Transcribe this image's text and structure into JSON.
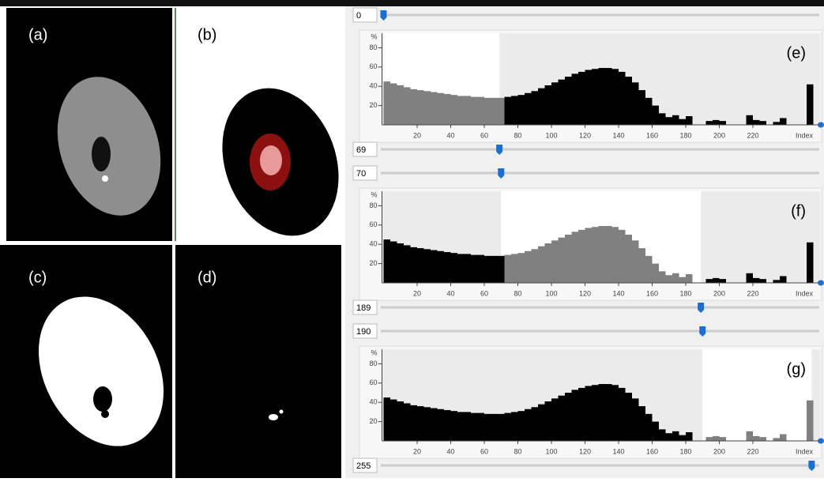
{
  "figure_panels": [
    {
      "label": "(a)"
    },
    {
      "label": "(b)"
    },
    {
      "label": "(c)"
    },
    {
      "label": "(d)"
    }
  ],
  "histogram": {
    "bins": [
      0,
      4,
      8,
      12,
      16,
      20,
      24,
      28,
      32,
      36,
      40,
      44,
      48,
      52,
      56,
      60,
      64,
      68,
      72,
      76,
      80,
      84,
      88,
      92,
      96,
      100,
      104,
      108,
      112,
      116,
      120,
      124,
      128,
      132,
      136,
      140,
      144,
      148,
      152,
      156,
      160,
      164,
      168,
      172,
      176,
      180,
      184,
      188,
      192,
      196,
      200,
      204,
      208,
      212,
      216,
      220,
      224,
      228,
      232,
      236,
      240,
      244,
      248,
      252,
      256
    ],
    "counts": [
      45,
      43,
      41,
      39,
      37,
      36,
      35,
      34,
      33,
      32,
      31,
      30,
      30,
      29,
      29,
      28,
      28,
      28,
      29,
      30,
      31,
      33,
      35,
      38,
      41,
      44,
      47,
      50,
      53,
      55,
      57,
      58,
      59,
      59,
      58,
      55,
      50,
      44,
      36,
      28,
      20,
      12,
      8,
      10,
      6,
      9,
      0,
      0,
      4,
      5,
      4,
      0,
      0,
      0,
      10,
      5,
      4,
      0,
      3,
      7,
      0,
      0,
      0,
      42
    ],
    "xlim": [
      0,
      260
    ],
    "xticks": [
      20,
      40,
      60,
      80,
      100,
      120,
      140,
      160,
      180,
      200,
      220
    ],
    "x_label": "Index",
    "ylim": [
      0,
      95
    ],
    "yticks": [
      20,
      40,
      60,
      80
    ],
    "y_label": "%"
  },
  "widgets": [
    {
      "label": "(e)",
      "low": 0,
      "high": 69
    },
    {
      "label": "(f)",
      "low": 70,
      "high": 189
    },
    {
      "label": "(g)",
      "low": 190,
      "high": 255
    }
  ]
}
